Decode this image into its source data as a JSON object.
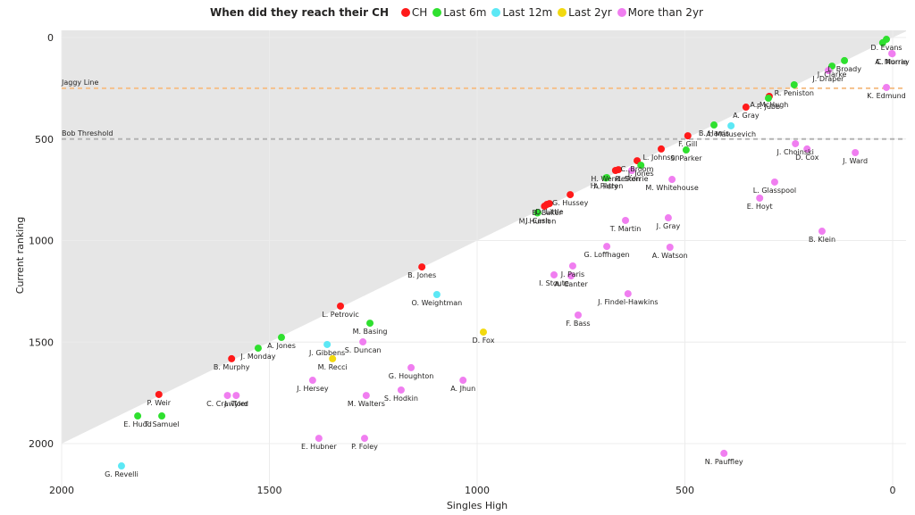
{
  "chart_data": {
    "type": "scatter",
    "title": "",
    "legend": {
      "title": "When did they reach their CH",
      "placement": "top-center",
      "entries": [
        {
          "key": "CH",
          "label": "CH",
          "color": "#ff1a1a"
        },
        {
          "key": "6m",
          "label": "Last 6m",
          "color": "#2fe02f"
        },
        {
          "key": "12m",
          "label": "Last 12m",
          "color": "#5ce8f5"
        },
        {
          "key": "2yr",
          "label": "Last 2yr",
          "color": "#f2d90f"
        },
        {
          "key": "more",
          "label": "More than 2yr",
          "color": "#f07ef0"
        }
      ]
    },
    "xlabel": "Singles High",
    "ylabel": "Current ranking",
    "xlim": [
      2000,
      0
    ],
    "ylim": [
      0,
      2150
    ],
    "x_reversed": true,
    "y_reversed": true,
    "xticks": [
      2000,
      1500,
      1000,
      500,
      0
    ],
    "yticks": [
      0,
      500,
      1000,
      1500,
      2000
    ],
    "grid": true,
    "shaded_region": "above diagonal where current ranking equals singles high",
    "reference_lines": [
      {
        "label": "Jaggy Line",
        "y": 250,
        "color": "#f5c08a"
      },
      {
        "label": "Bob Threshold",
        "y": 500,
        "color": "#b3b3b3"
      }
    ],
    "points": [
      {
        "name": "D. Evans",
        "x": 15,
        "y": 9,
        "group": "6m"
      },
      {
        "name": "",
        "x": 24,
        "y": 26,
        "group": "6m"
      },
      {
        "name": "C. Norrie",
        "x": 2,
        "y": 79,
        "group": "more"
      },
      {
        "name": "L. Broady",
        "x": 116,
        "y": 114,
        "group": "6m"
      },
      {
        "name": "J. Clarke",
        "x": 146,
        "y": 141,
        "group": "6m"
      },
      {
        "name": "J. Draper",
        "x": 155,
        "y": 163,
        "group": "more"
      },
      {
        "name": "A. Murray",
        "x": 1,
        "y": 80,
        "group": "more"
      },
      {
        "name": "R. Peniston",
        "x": 237,
        "y": 233,
        "group": "6m"
      },
      {
        "name": "K. Edmund",
        "x": 15,
        "y": 246,
        "group": "more"
      },
      {
        "name": "A. McHugh",
        "x": 297,
        "y": 290,
        "group": "CH"
      },
      {
        "name": "P. Jubb",
        "x": 299,
        "y": 299,
        "group": "6m"
      },
      {
        "name": "A. Gray",
        "x": 353,
        "y": 343,
        "group": "CH"
      },
      {
        "name": "B. Harris",
        "x": 430,
        "y": 431,
        "group": "6m"
      },
      {
        "name": "A. Matusevich",
        "x": 389,
        "y": 435,
        "group": "12m"
      },
      {
        "name": "F. Gill",
        "x": 493,
        "y": 484,
        "group": "CH"
      },
      {
        "name": "S. Parker",
        "x": 497,
        "y": 554,
        "group": "6m"
      },
      {
        "name": "J. Choinski",
        "x": 234,
        "y": 523,
        "group": "more"
      },
      {
        "name": "D. Cox",
        "x": 206,
        "y": 549,
        "group": "more"
      },
      {
        "name": "J. Ward",
        "x": 90,
        "y": 567,
        "group": "more"
      },
      {
        "name": "L. Johnson",
        "x": 557,
        "y": 549,
        "group": "CH"
      },
      {
        "name": "C. Broom",
        "x": 615,
        "y": 607,
        "group": "CH"
      },
      {
        "name": "J. Jones",
        "x": 606,
        "y": 629,
        "group": "6m"
      },
      {
        "name": "H. Wendelken",
        "x": 667,
        "y": 655,
        "group": "CH"
      },
      {
        "name": "",
        "x": 660,
        "y": 651,
        "group": "CH"
      },
      {
        "name": "R. Storrie",
        "x": 628,
        "y": 655,
        "group": "more"
      },
      {
        "name": "M. Whitehouse",
        "x": 531,
        "y": 699,
        "group": "more"
      },
      {
        "name": "H. Patten",
        "x": 688,
        "y": 690,
        "group": "6m"
      },
      {
        "name": "A. Fery",
        "x": 690,
        "y": 692,
        "group": "6m"
      },
      {
        "name": "G. Hussey",
        "x": 776,
        "y": 774,
        "group": "CH"
      },
      {
        "name": "B. Baker",
        "x": 832,
        "y": 822,
        "group": "CH"
      },
      {
        "name": "D. Little",
        "x": 826,
        "y": 818,
        "group": "CH"
      },
      {
        "name": "",
        "x": 838,
        "y": 831,
        "group": "CH"
      },
      {
        "name": "J. Cash",
        "x": 854,
        "y": 862,
        "group": "6m"
      },
      {
        "name": "M. Hurrion",
        "x": 855,
        "y": 864,
        "group": "6m"
      },
      {
        "name": "L. Glasspool",
        "x": 284,
        "y": 712,
        "group": "more"
      },
      {
        "name": "E. Hoyt",
        "x": 320,
        "y": 791,
        "group": "more"
      },
      {
        "name": "T. Martin",
        "x": 643,
        "y": 901,
        "group": "more"
      },
      {
        "name": "J. Gray",
        "x": 540,
        "y": 888,
        "group": "more"
      },
      {
        "name": "B. Klein",
        "x": 170,
        "y": 954,
        "group": "more"
      },
      {
        "name": "G. Loffhagen",
        "x": 688,
        "y": 1029,
        "group": "more"
      },
      {
        "name": "A. Watson",
        "x": 536,
        "y": 1033,
        "group": "more"
      },
      {
        "name": "J. Paris",
        "x": 770,
        "y": 1125,
        "group": "more"
      },
      {
        "name": "I. Stoute",
        "x": 815,
        "y": 1169,
        "group": "more"
      },
      {
        "name": "A. Canter",
        "x": 774,
        "y": 1174,
        "group": "more"
      },
      {
        "name": "J. Findel-Hawkins",
        "x": 637,
        "y": 1262,
        "group": "more"
      },
      {
        "name": "F. Bass",
        "x": 757,
        "y": 1367,
        "group": "more"
      },
      {
        "name": "B. Jones",
        "x": 1133,
        "y": 1130,
        "group": "CH"
      },
      {
        "name": "O. Weightman",
        "x": 1097,
        "y": 1266,
        "group": "12m"
      },
      {
        "name": "D. Fox",
        "x": 985,
        "y": 1451,
        "group": "2yr"
      },
      {
        "name": "L. Petrovic",
        "x": 1329,
        "y": 1323,
        "group": "CH"
      },
      {
        "name": "M. Basing",
        "x": 1258,
        "y": 1407,
        "group": "6m"
      },
      {
        "name": "A. Jones",
        "x": 1471,
        "y": 1477,
        "group": "6m"
      },
      {
        "name": "J. Monday",
        "x": 1527,
        "y": 1530,
        "group": "6m"
      },
      {
        "name": "B. Murphy",
        "x": 1591,
        "y": 1582,
        "group": "CH"
      },
      {
        "name": "J. Gibbens",
        "x": 1361,
        "y": 1512,
        "group": "12m"
      },
      {
        "name": "S. Duncan",
        "x": 1275,
        "y": 1499,
        "group": "more"
      },
      {
        "name": "M. Recci",
        "x": 1348,
        "y": 1582,
        "group": "2yr"
      },
      {
        "name": "J. Hersey",
        "x": 1396,
        "y": 1688,
        "group": "more"
      },
      {
        "name": "G. Houghton",
        "x": 1159,
        "y": 1626,
        "group": "more"
      },
      {
        "name": "A. Jhun",
        "x": 1034,
        "y": 1688,
        "group": "more"
      },
      {
        "name": "M. Walters",
        "x": 1267,
        "y": 1763,
        "group": "more"
      },
      {
        "name": "S. Hodkin",
        "x": 1183,
        "y": 1736,
        "group": "more"
      },
      {
        "name": "J. Tyler",
        "x": 1580,
        "y": 1763,
        "group": "more"
      },
      {
        "name": "C. Crawford",
        "x": 1601,
        "y": 1763,
        "group": "more"
      },
      {
        "name": "P. Weir",
        "x": 1766,
        "y": 1758,
        "group": "CH"
      },
      {
        "name": "T. Samuel",
        "x": 1759,
        "y": 1864,
        "group": "6m"
      },
      {
        "name": "E. Hudd",
        "x": 1817,
        "y": 1864,
        "group": "6m"
      },
      {
        "name": "E. Hubner",
        "x": 1381,
        "y": 1974,
        "group": "more"
      },
      {
        "name": "P. Foley",
        "x": 1271,
        "y": 1974,
        "group": "more"
      },
      {
        "name": "G. Revelli",
        "x": 1856,
        "y": 2110,
        "group": "12m"
      },
      {
        "name": "N. Pauffley",
        "x": 406,
        "y": 2048,
        "group": "more"
      }
    ]
  }
}
